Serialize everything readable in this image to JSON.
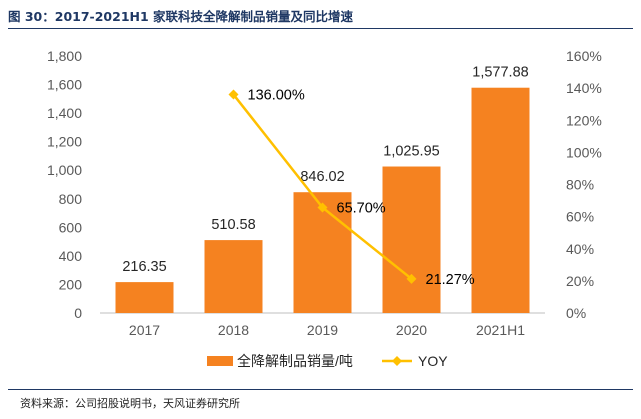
{
  "figure_title": "图 30：2017-2021H1 家联科技全降解制品销量及同比增速",
  "source": "资料来源：公司招股说明书，天风证券研究所",
  "colors": {
    "bar": "#f58220",
    "line": "#ffc000",
    "title": "#1f3864"
  },
  "chart_data": {
    "type": "bar+line",
    "title": "",
    "categories": [
      "2017",
      "2018",
      "2019",
      "2020",
      "2021H1"
    ],
    "series": [
      {
        "name": "全降解制品销量/吨",
        "type": "bar",
        "axis": "left",
        "values": [
          216.35,
          510.58,
          846.02,
          1025.95,
          1577.88
        ],
        "labels": [
          "216.35",
          "510.58",
          "846.02",
          "1,025.95",
          "1,577.88"
        ]
      },
      {
        "name": "YOY",
        "type": "line",
        "axis": "right",
        "values": [
          null,
          136.0,
          65.7,
          21.27,
          null
        ],
        "labels": [
          "",
          "136.00%",
          "65.70%",
          "21.27%",
          ""
        ]
      }
    ],
    "y_left": {
      "min": 0,
      "max": 1800,
      "step": 200,
      "tick_labels": [
        "0",
        "200",
        "400",
        "600",
        "800",
        "1,000",
        "1,200",
        "1,400",
        "1,600",
        "1,800"
      ]
    },
    "y_right": {
      "min": 0,
      "max": 160,
      "step": 20,
      "tick_labels": [
        "0%",
        "20%",
        "40%",
        "60%",
        "80%",
        "100%",
        "120%",
        "140%",
        "160%"
      ]
    },
    "legend": [
      "全降解制品销量/吨",
      "YOY"
    ],
    "legend_position": "bottom",
    "grid": false
  }
}
